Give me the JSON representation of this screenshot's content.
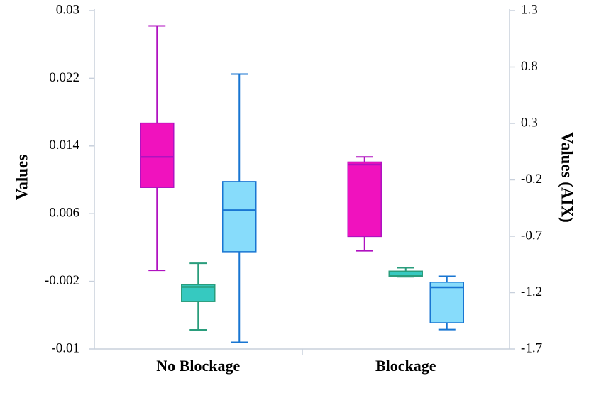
{
  "chart_data": {
    "type": "box",
    "y_label": "Values",
    "y2_label": "Values (AIX)",
    "categories": [
      "No Blockage",
      "Blockage"
    ],
    "ylim": [
      -0.01,
      0.03
    ],
    "yticks": [
      -0.01,
      -0.002,
      0.006,
      0.014,
      0.022,
      0.03
    ],
    "y2lim": [
      -1.7,
      1.3
    ],
    "y2ticks": [
      -1.7,
      -1.2,
      -0.7,
      -0.2,
      0.3,
      0.8,
      1.3
    ],
    "series": [
      {
        "color": "#f012be",
        "stroke": "#b012c0",
        "axis": "y",
        "min": [
          -0.0007,
          0.0016
        ],
        "q1": [
          0.0091,
          0.0033
        ],
        "median": [
          0.0127,
          0.0118
        ],
        "q3": [
          0.0167,
          0.0121
        ],
        "max": [
          0.0282,
          0.0127
        ]
      },
      {
        "color": "#36c9c0",
        "stroke": "#2a9d7c",
        "axis": "y2",
        "min": [
          -1.53,
          -1.06
        ],
        "q1": [
          -1.28,
          -1.06
        ],
        "median": [
          -1.15,
          -1.05
        ],
        "q3": [
          -1.13,
          -1.01
        ],
        "max": [
          -0.94,
          -0.98
        ]
      },
      {
        "color": "#87dcfb",
        "stroke": "#1976d2",
        "axis": "y",
        "min": [
          -0.0092,
          -0.0077
        ],
        "q1": [
          0.0015,
          -0.0069
        ],
        "median": [
          0.0064,
          -0.0027
        ],
        "q3": [
          0.0098,
          -0.0021
        ],
        "max": [
          0.0225,
          -0.0014
        ]
      }
    ]
  }
}
